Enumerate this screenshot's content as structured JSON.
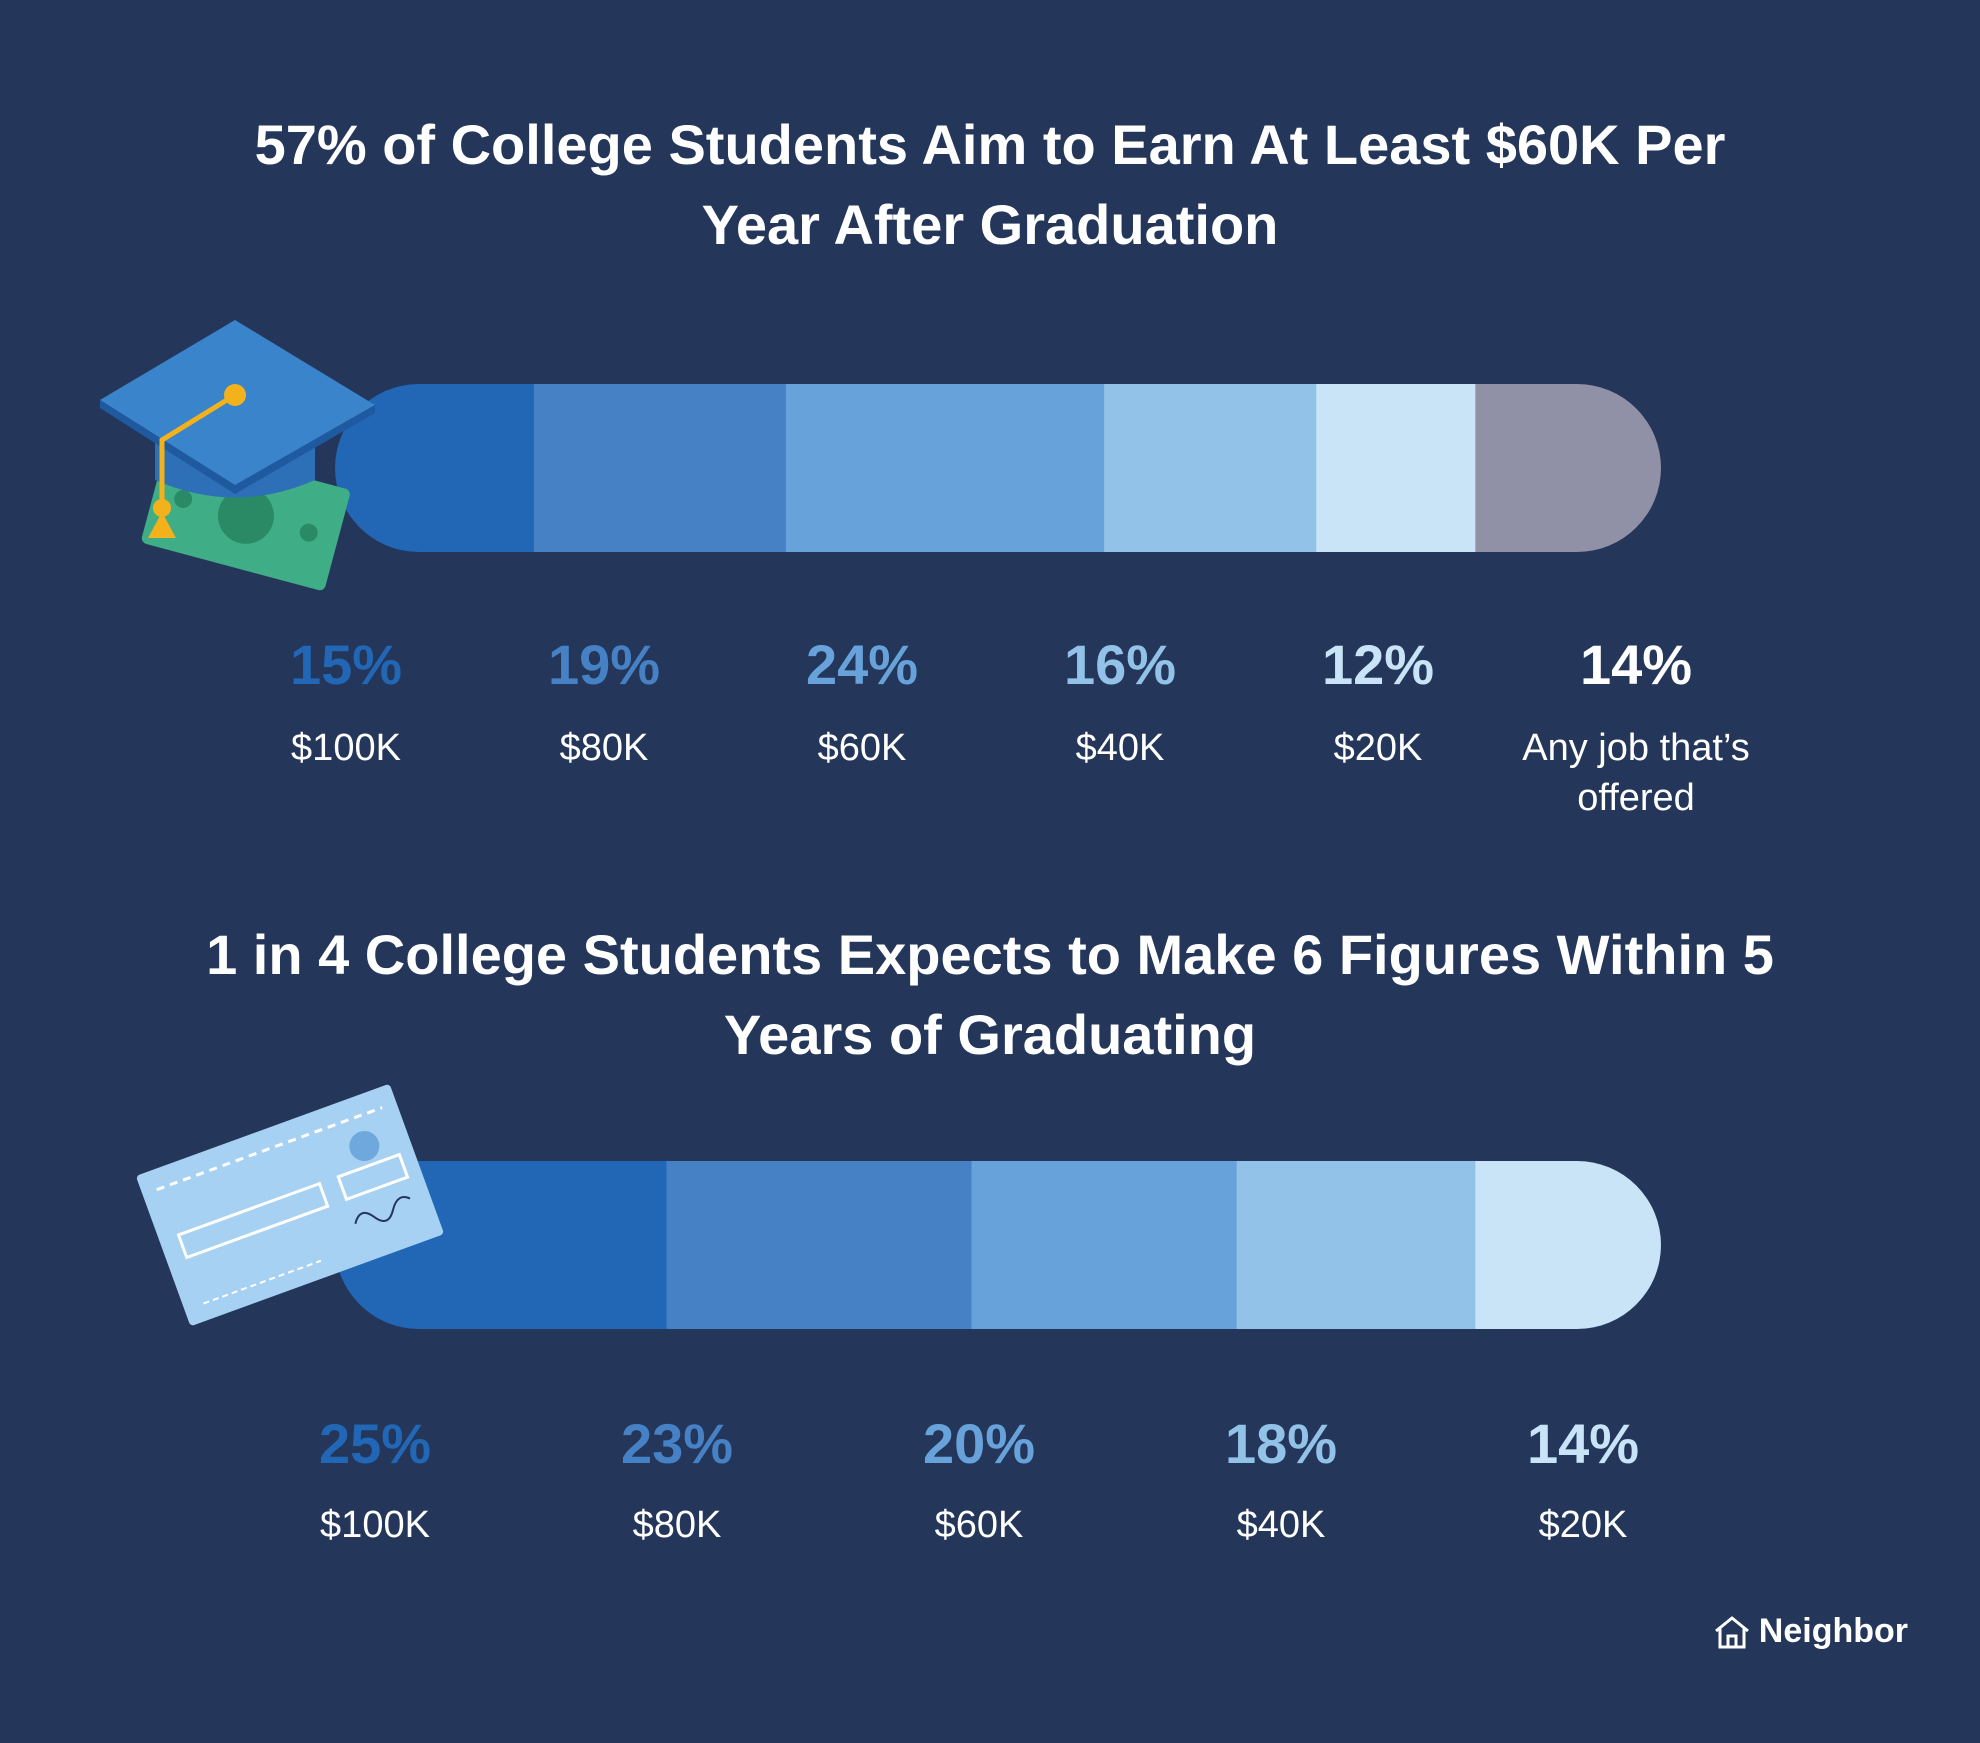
{
  "chart_data": [
    {
      "type": "stacked-bar",
      "title": "57% of College Students Aim to Earn At Least $60K Per Year After Graduation",
      "categories": [
        "$100K",
        "$80K",
        "$60K",
        "$40K",
        "$20K",
        "Any job that’s offered"
      ],
      "values": [
        15,
        19,
        24,
        16,
        12,
        14
      ],
      "value_labels": [
        "15%",
        "19%",
        "24%",
        "16%",
        "12%",
        "14%"
      ],
      "colors": [
        "#2167b5",
        "#4581c4",
        "#67a3da",
        "#92c2e8",
        "#c8e4f6",
        "#9090a6"
      ],
      "label_colors": [
        "#2167b5",
        "#4581c4",
        "#67a3da",
        "#92c2e8",
        "#c8e4f6",
        "#ffffff"
      ]
    },
    {
      "type": "stacked-bar",
      "title": "1 in 4 College Students Expects to Make 6 Figures Within 5 Years of Graduating",
      "categories": [
        "$100K",
        "$80K",
        "$60K",
        "$40K",
        "$20K"
      ],
      "values": [
        25,
        23,
        20,
        18,
        14
      ],
      "value_labels": [
        "25%",
        "23%",
        "20%",
        "18%",
        "14%"
      ],
      "colors": [
        "#2167b5",
        "#4581c4",
        "#67a3da",
        "#92c2e8",
        "#c8e4f6"
      ],
      "label_colors": [
        "#2167b5",
        "#4581c4",
        "#67a3da",
        "#92c2e8",
        "#c8e4f6"
      ]
    }
  ],
  "brand": "Neighbor"
}
